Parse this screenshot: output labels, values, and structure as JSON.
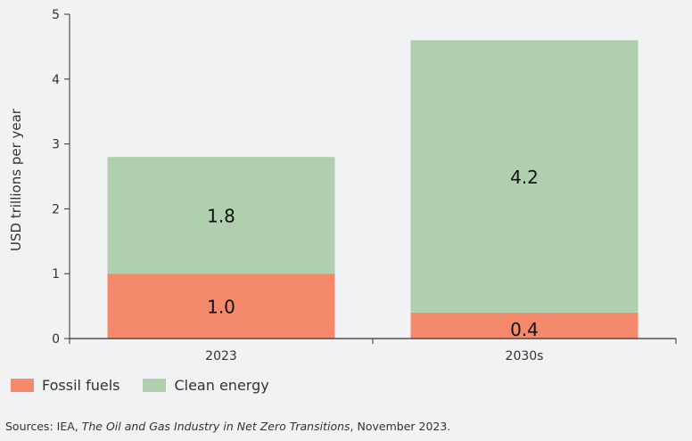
{
  "chart_data": {
    "type": "bar",
    "stacked": true,
    "ylabel": "USD trillions per year",
    "ylim": [
      0,
      5
    ],
    "yticks": [
      "0",
      "1",
      "2",
      "3",
      "4",
      "5"
    ],
    "categories": [
      "2023",
      "2030s"
    ],
    "series": [
      {
        "name": "Fossil fuels",
        "values": [
          1.0,
          0.4
        ],
        "labels": [
          "1.0",
          "0.4"
        ],
        "color": "#f4896b"
      },
      {
        "name": "Clean energy",
        "values": [
          1.8,
          4.2
        ],
        "labels": [
          "1.8",
          "4.2"
        ],
        "color": "#afcfae"
      }
    ],
    "legend_position": "bottom-left"
  },
  "source": {
    "prefix": "Sources: IEA, ",
    "title": "The Oil and Gas Industry in Net Zero Transitions",
    "suffix": ", November 2023."
  }
}
